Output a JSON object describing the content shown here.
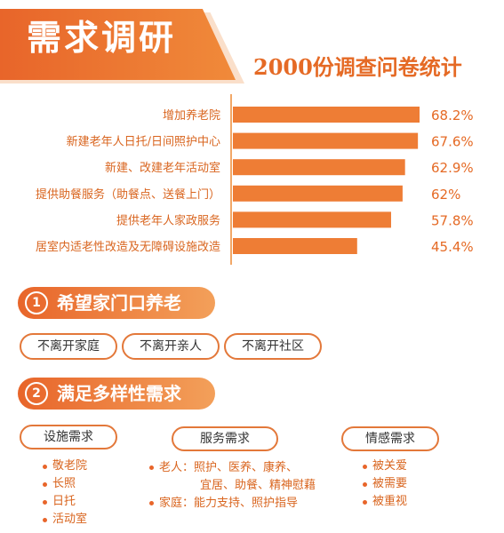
{
  "header": {
    "title": "需求调研",
    "subtitle": "2000份调查问卷统计"
  },
  "chart_data": {
    "type": "bar",
    "orientation": "horizontal",
    "categories": [
      "增加养老院",
      "新建老年人日托/日间照护中心",
      "新建、改建老年活动室",
      "提供助餐服务（助餐点、送餐上门）",
      "提供老年人家政服务",
      "居室内适老性改造及无障碍设施改造"
    ],
    "values": [
      68.2,
      67.6,
      62.9,
      62,
      57.8,
      45.4
    ],
    "value_labels": [
      "68.2%",
      "67.6%",
      "62.9%",
      "62%",
      "57.8%",
      "45.4%"
    ],
    "xlim": [
      0,
      70
    ],
    "color": "#ee7d35",
    "grid": false
  },
  "section1": {
    "number": "1",
    "title": "希望家门口养老",
    "tags": [
      "不离开家庭",
      "不离开亲人",
      "不离开社区"
    ]
  },
  "section2": {
    "number": "2",
    "title": "满足多样性需求",
    "facilities": {
      "title": "设施需求",
      "items": [
        "敬老院",
        "长照",
        "日托",
        "活动室"
      ]
    },
    "services": {
      "title": "服务需求",
      "elderly_label": "老人：",
      "elderly_line1": "照护、医养、康养、",
      "elderly_line2": "宜居、助餐、精神慰藉",
      "family_label": "家庭：",
      "family_line": "能力支持、照护指导"
    },
    "emotional": {
      "title": "情感需求",
      "items": [
        "被关爱",
        "被需要",
        "被重视"
      ]
    }
  },
  "colors": {
    "accent": "#e8652a",
    "text": "#d9651f",
    "bar": "#ee7d35"
  }
}
